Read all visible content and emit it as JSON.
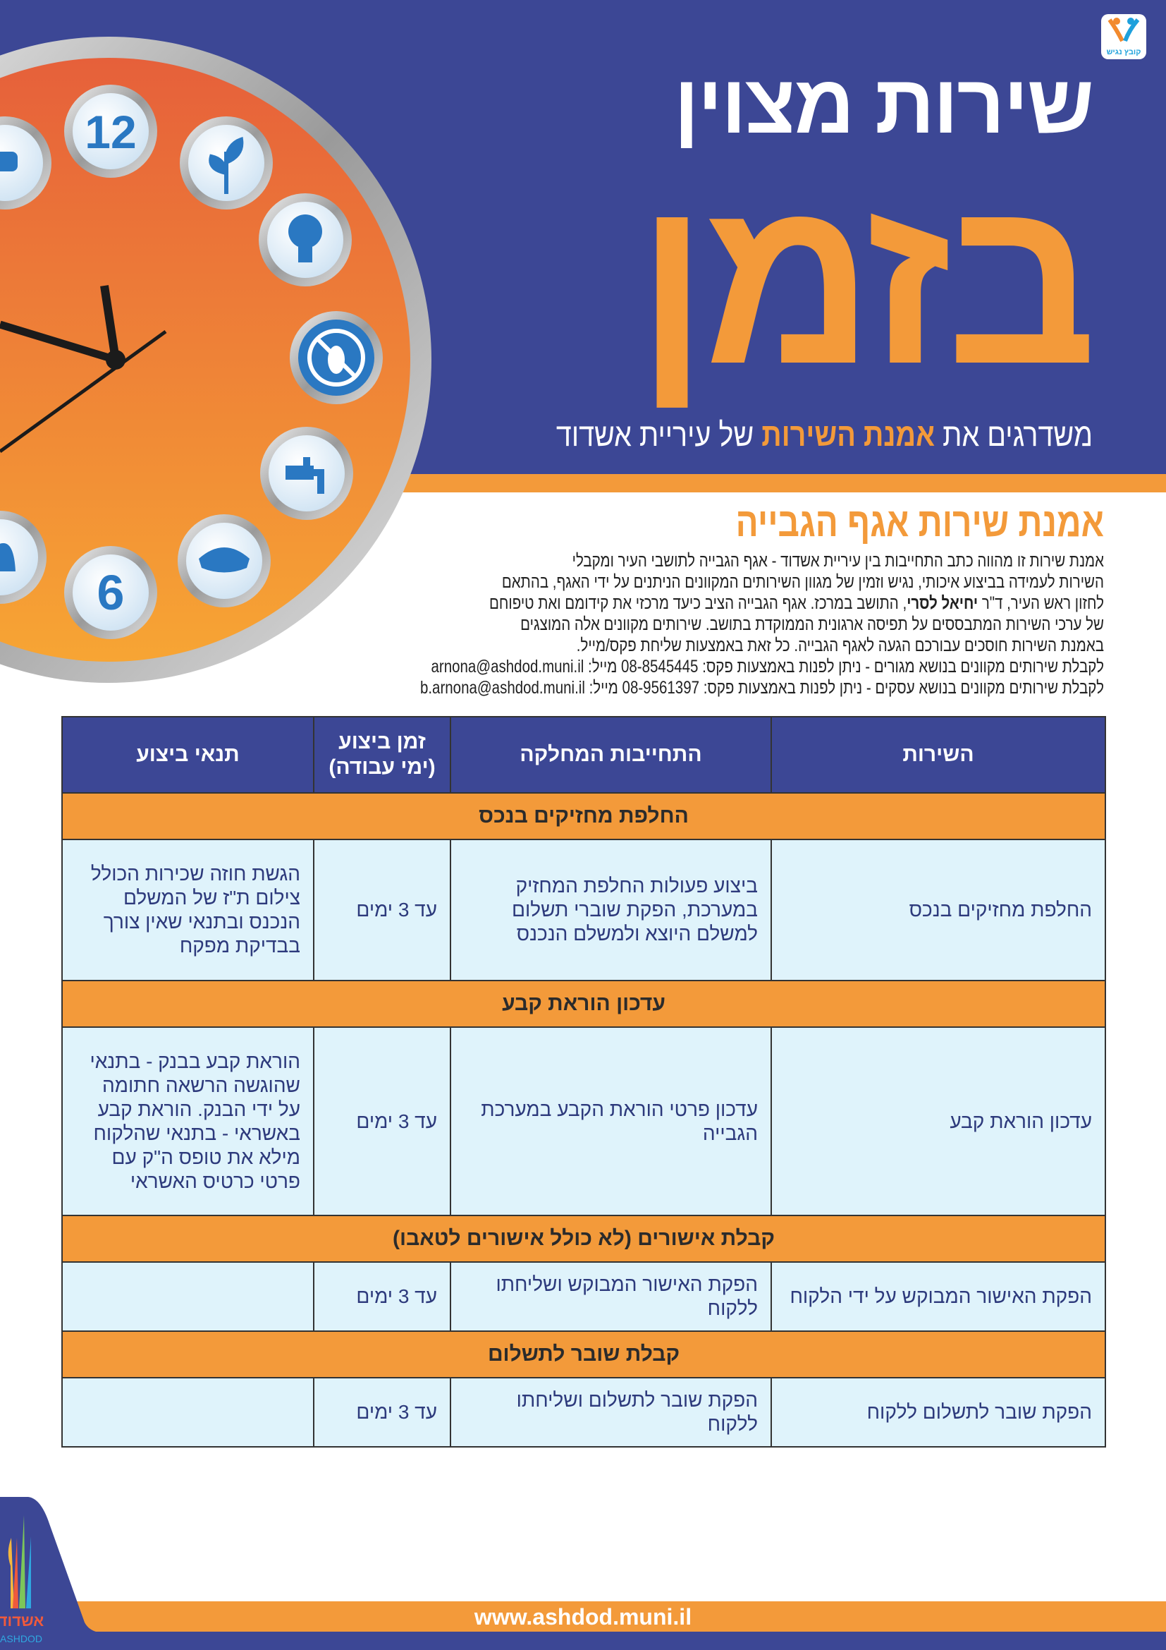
{
  "header": {
    "accessibility_logo_text": "קובץ נגיש",
    "title": "שירות מצוין",
    "big_title": "בזמן",
    "subtitle_pre": "משדרגים את ",
    "subtitle_highlight": "אמנת השירות",
    "subtitle_post": " של עיריית אשדוד"
  },
  "clock": {
    "number_12": "12",
    "number_6": "6",
    "face_color": "#e8713a",
    "icons": [
      "car-icon",
      "plant-icon",
      "lightbulb-icon",
      "no-pests-icon",
      "water-tap-icon",
      "inspector-hat-icon",
      "bell-icon"
    ]
  },
  "section": {
    "heading": "אמנת שירות אגף הגבייה",
    "lines": [
      "אמנת שירות זו מהווה כתב התחייבות בין עיריית אשדוד - אגף הגבייה לתושבי העיר ומקבלי",
      "השירות לעמידה בביצוע איכותי, נגיש וזמין של מגוון השירותים המקוונים הניתנים על ידי האגף, בהתאם",
      "",
      "של ערכי השירות המתבססים על תפיסה ארגונית הממוקדת בתושב. שירותים מקוונים אלה המוצגים",
      "באמנת השירות חוסכים עבורכם הגעה לאגף הגבייה. כל זאת באמצעות שליחת פקס/מייל.",
      "לקבלת שירותים מקוונים בנושא מגורים - ניתן לפנות באמצעות פקס: 08-8545445 מייל: arnona@ashdod.muni.il",
      "לקבלת שירותים מקוונים בנושא עסקים - ניתן לפנות באמצעות פקס: 08-9561397 מייל: b.arnona@ashdod.muni.il"
    ],
    "line3_pre": "לחזון ראש העיר, ד\"ר ",
    "line3_bold": "יחיאל לסרי",
    "line3_post": ", התושב במרכז. אגף הגבייה הציב כיעד מרכזי את קידומם ואת טיפוחם"
  },
  "table": {
    "headers": [
      "השירות",
      "התחייבות המחלקה",
      "זמן ביצוע (ימי עבודה)",
      "תנאי ביצוע"
    ],
    "groups": [
      {
        "title": "החלפת מחזיקים בנכס",
        "service": "החלפת מחזיקים בנכס",
        "commitment": "ביצוע פעולות החלפת המחזיק במערכת, הפקת שוברי תשלום למשלם היוצא ולמשלם הנכנס",
        "time": "עד 3 ימים",
        "conditions": "הגשת חוזה שכירות הכולל צילום ת\"ז של המשלם הנכנס ובתנאי שאין צורך בבדיקת מפקח"
      },
      {
        "title": "עדכון הוראת קבע",
        "service": "עדכון הוראת קבע",
        "commitment": "עדכון פרטי הוראת הקבע במערכת הגבייה",
        "time": "עד 3 ימים",
        "conditions": "הוראת קבע בבנק - בתנאי שהוגשה הרשאה חתומה על ידי הבנק. הוראת קבע באשראי - בתנאי שהלקוח מילא את טופס ה\"ק עם פרטי כרטיס האשראי"
      },
      {
        "title": "קבלת אישורים (לא כולל אישורים לטאבו)",
        "service": "הפקת האישור המבוקש על ידי הלקוח",
        "commitment": "הפקת האישור המבוקש ושליחתו ללקוח",
        "time": "עד 3 ימים",
        "conditions": ""
      },
      {
        "title": "קבלת שובר לתשלום",
        "service": "הפקת שובר לתשלום ללקוח",
        "commitment": "הפקת שובר לתשלום ושליחתו ללקוח",
        "time": "עד 3 ימים",
        "conditions": ""
      }
    ]
  },
  "footer": {
    "url": "www.ashdod.muni.il",
    "logo_hebrew": "אשדוד",
    "logo_latin": "ASHDOD"
  },
  "colors": {
    "blue": "#3c4795",
    "orange": "#f39a3a",
    "cell": "#dff3fb"
  }
}
